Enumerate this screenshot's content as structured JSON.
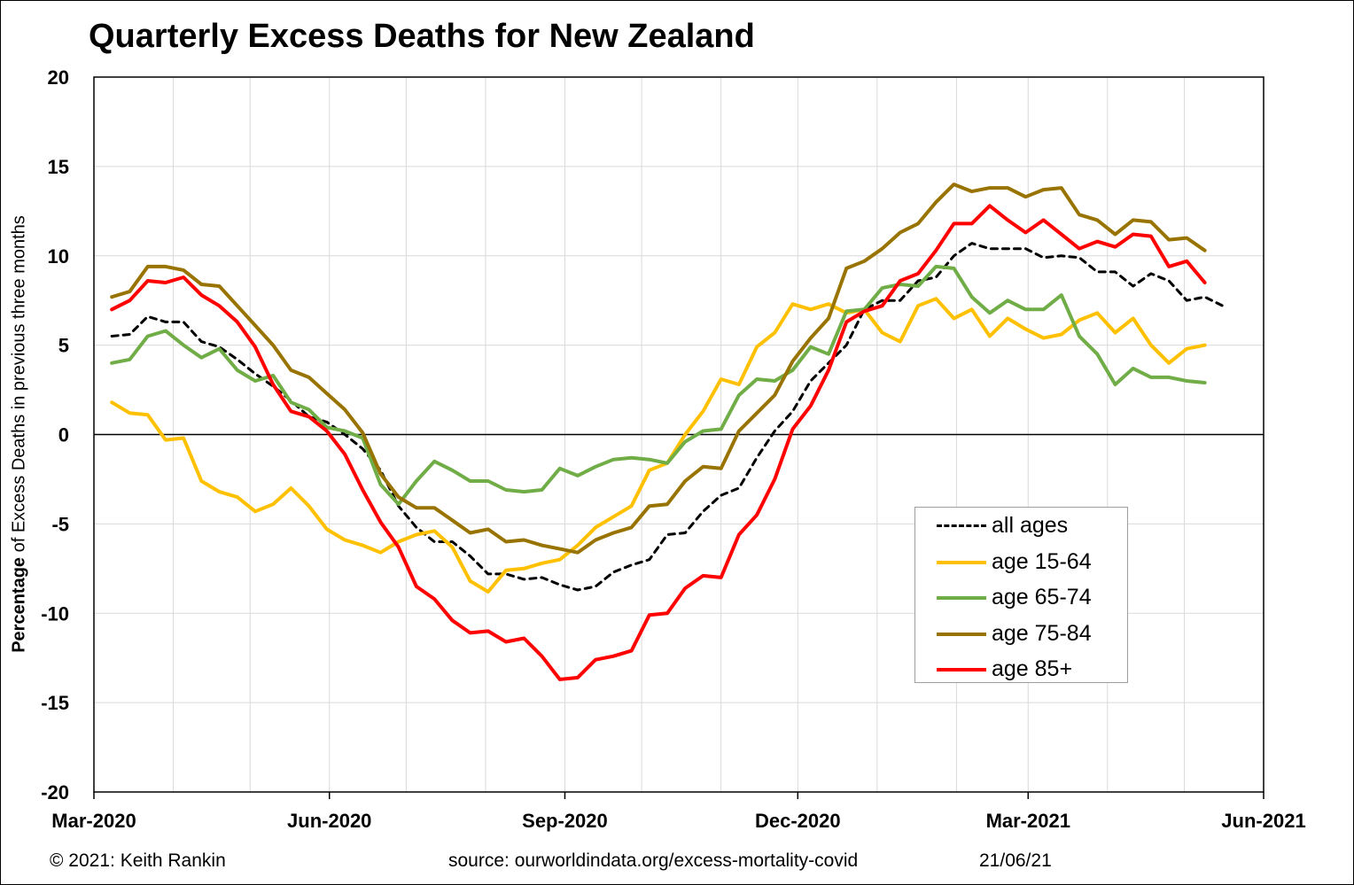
{
  "chart_data": {
    "type": "line",
    "title": "Quarterly Excess Deaths for New Zealand",
    "ylabel_bold": "Percentage",
    "ylabel_rest": " of Excess Deaths in previous three months",
    "xlabel": "",
    "ylim": [
      -20,
      20
    ],
    "y_ticks": [
      "20",
      "15",
      "10",
      "5",
      "0",
      "-5",
      "-10",
      "-15",
      "-20"
    ],
    "x_ticks": [
      "Mar-2020",
      "Jun-2020",
      "Sep-2020",
      "Dec-2020",
      "Mar-2021",
      "Jun-2021"
    ],
    "grid": true,
    "legend_position": "bottom-right",
    "x_start": "2020-03-08",
    "x_step_days": 7,
    "series": [
      {
        "name": "all ages",
        "color": "#000000",
        "dashed": true,
        "width": 3,
        "values": [
          5.5,
          5.6,
          6.6,
          6.3,
          6.3,
          5.2,
          4.9,
          4.2,
          3.4,
          2.7,
          1.9,
          1.0,
          0.7,
          0.0,
          -0.8,
          -2.0,
          -4.0,
          -5.2,
          -6.0,
          -6.0,
          -6.8,
          -7.8,
          -7.8,
          -8.1,
          -8.0,
          -8.4,
          -8.7,
          -8.5,
          -7.7,
          -7.3,
          -7.0,
          -5.6,
          -5.5,
          -4.3,
          -3.4,
          -3.0,
          -1.3,
          0.2,
          1.3,
          3.0,
          4.0,
          5.0,
          7.0,
          7.5,
          7.5,
          8.6,
          8.8,
          10.0,
          10.7,
          10.4,
          10.4,
          10.4,
          9.9,
          10.0,
          9.9,
          9.1,
          9.1,
          8.3,
          9.0,
          8.6,
          7.5,
          7.7,
          7.2
        ]
      },
      {
        "name": "age 15-64",
        "color": "#FFC000",
        "dashed": false,
        "width": 4,
        "values": [
          1.8,
          1.2,
          1.1,
          -0.3,
          -0.2,
          -2.6,
          -3.2,
          -3.5,
          -4.3,
          -3.9,
          -3.0,
          -4.0,
          -5.3,
          -5.9,
          -6.2,
          -6.6,
          -6.0,
          -5.6,
          -5.4,
          -6.3,
          -8.2,
          -8.8,
          -7.6,
          -7.5,
          -7.2,
          -7.0,
          -6.2,
          -5.2,
          -4.6,
          -4.0,
          -2.0,
          -1.6,
          0.0,
          1.3,
          3.1,
          2.8,
          4.9,
          5.7,
          7.3,
          7.0,
          7.3,
          6.8,
          7.0,
          5.7,
          5.2,
          7.2,
          7.6,
          6.5,
          7.0,
          5.5,
          6.5,
          5.9,
          5.4,
          5.6,
          6.4,
          6.8,
          5.7,
          6.5,
          5.0,
          4.0,
          4.8,
          5.0
        ]
      },
      {
        "name": "age 65-74",
        "color": "#70AD47",
        "dashed": false,
        "width": 4,
        "values": [
          4.0,
          4.2,
          5.5,
          5.8,
          5.0,
          4.3,
          4.8,
          3.6,
          3.0,
          3.3,
          1.8,
          1.4,
          0.4,
          0.2,
          -0.2,
          -2.8,
          -3.9,
          -2.6,
          -1.5,
          -2.0,
          -2.6,
          -2.6,
          -3.1,
          -3.2,
          -3.1,
          -1.9,
          -2.3,
          -1.8,
          -1.4,
          -1.3,
          -1.4,
          -1.6,
          -0.4,
          0.2,
          0.3,
          2.2,
          3.1,
          3.0,
          3.6,
          4.9,
          4.5,
          6.9,
          7.0,
          8.2,
          8.4,
          8.3,
          9.4,
          9.3,
          7.7,
          6.8,
          7.5,
          7.0,
          7.0,
          7.8,
          5.5,
          4.5,
          2.8,
          3.7,
          3.2,
          3.2,
          3.0,
          2.9
        ]
      },
      {
        "name": "age 75-84",
        "color": "#997300",
        "dashed": false,
        "width": 4,
        "values": [
          7.7,
          8.0,
          9.4,
          9.4,
          9.2,
          8.4,
          8.3,
          7.2,
          6.1,
          5.0,
          3.6,
          3.2,
          2.3,
          1.4,
          0.1,
          -2.2,
          -3.5,
          -4.1,
          -4.1,
          -4.8,
          -5.5,
          -5.3,
          -6.0,
          -5.9,
          -6.2,
          -6.4,
          -6.6,
          -5.9,
          -5.5,
          -5.2,
          -4.0,
          -3.9,
          -2.6,
          -1.8,
          -1.9,
          0.2,
          1.2,
          2.2,
          4.1,
          5.4,
          6.5,
          9.3,
          9.7,
          10.4,
          11.3,
          11.8,
          13.0,
          14.0,
          13.6,
          13.8,
          13.8,
          13.3,
          13.7,
          13.8,
          12.3,
          12.0,
          11.2,
          12.0,
          11.9,
          10.9,
          11.0,
          10.3
        ]
      },
      {
        "name": "age 85+",
        "color": "#FF0000",
        "dashed": false,
        "width": 4,
        "values": [
          7.0,
          7.5,
          8.6,
          8.5,
          8.8,
          7.8,
          7.2,
          6.3,
          4.9,
          2.8,
          1.3,
          1.0,
          0.2,
          -1.1,
          -3.1,
          -4.9,
          -6.3,
          -8.5,
          -9.2,
          -10.4,
          -11.1,
          -11.0,
          -11.6,
          -11.4,
          -12.4,
          -13.7,
          -13.6,
          -12.6,
          -12.4,
          -12.1,
          -10.1,
          -10.0,
          -8.6,
          -7.9,
          -8.0,
          -5.6,
          -4.5,
          -2.5,
          0.3,
          1.6,
          3.6,
          6.3,
          6.9,
          7.2,
          8.6,
          9.0,
          10.3,
          11.8,
          11.8,
          12.8,
          12.0,
          11.3,
          12.0,
          11.2,
          10.4,
          10.8,
          10.5,
          11.2,
          11.1,
          9.4,
          9.7,
          8.5
        ]
      }
    ]
  },
  "footer": {
    "copyright": "© 2021: Keith Rankin",
    "source": "source: ourworldindata.org/excess-mortality-covid",
    "date": "21/06/21"
  }
}
